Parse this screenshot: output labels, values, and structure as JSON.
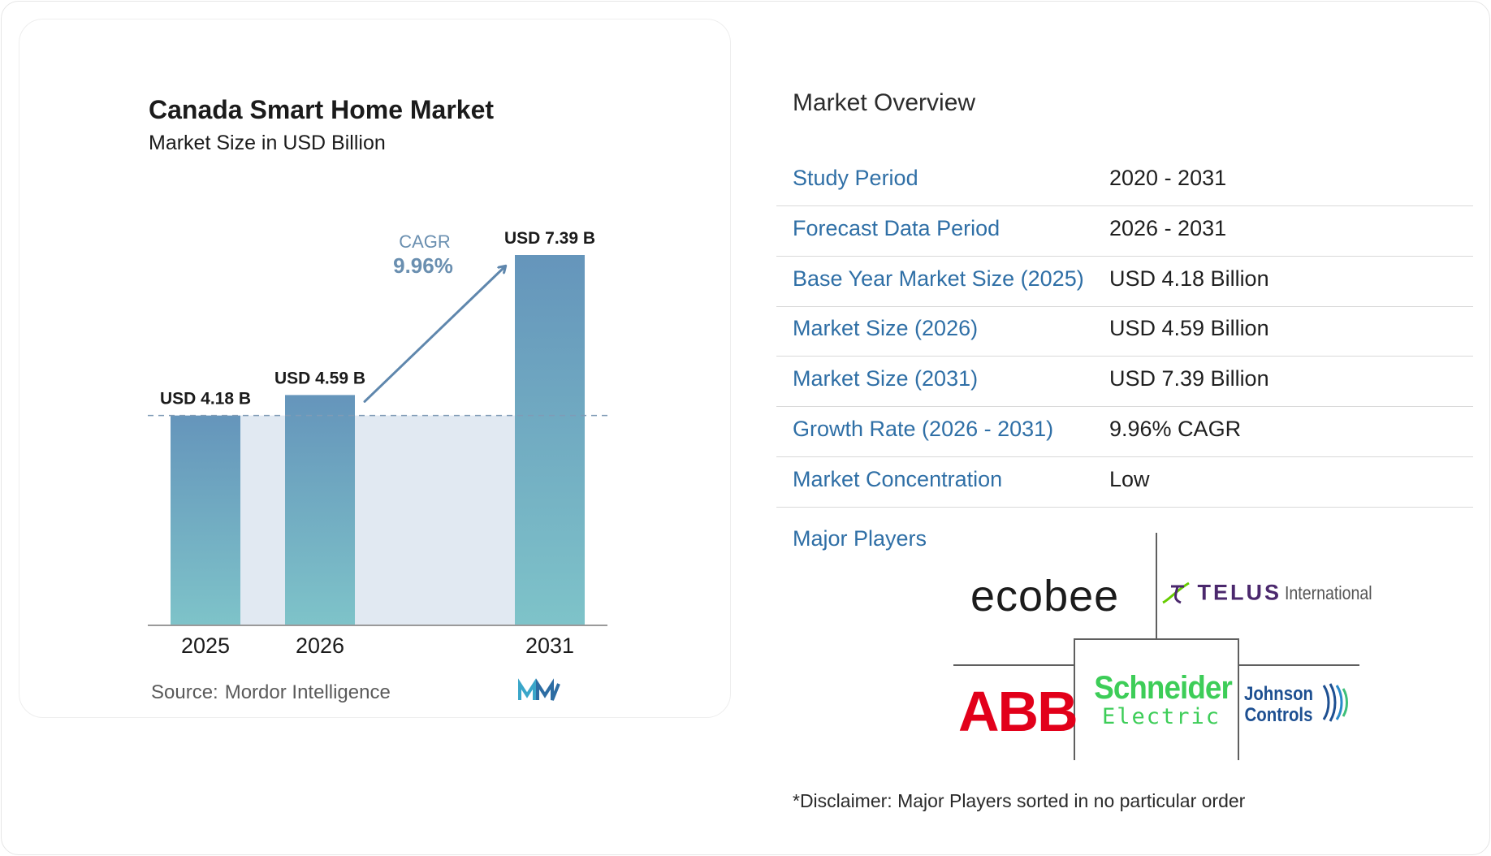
{
  "chart_data": {
    "type": "bar",
    "title": "Canada Smart Home Market",
    "subtitle": "Market Size in USD Billion",
    "categories": [
      "2025",
      "2026",
      "2031"
    ],
    "values": [
      4.18,
      4.59,
      7.39
    ],
    "data_labels": [
      "USD 4.18 B",
      "USD 4.59 B",
      "USD 7.39 B"
    ],
    "cagr_label": "CAGR",
    "cagr_value": "9.96%",
    "colors": {
      "bar_top": "#6595bb",
      "bar_bottom": "#7ec3c9",
      "band": "#e1e9f2",
      "accent": "#5f87ad",
      "cagr_text": "#6a8fb0"
    },
    "source_label": "Source:",
    "source_name": "Mordor Intelligence",
    "logo_icon": "mordor-intelligence-logo-icon"
  },
  "overview": {
    "title": "Market Overview",
    "rows": [
      {
        "label": "Study Period",
        "value": "2020 - 2031"
      },
      {
        "label": "Forecast Data Period",
        "value": "2026 - 2031"
      },
      {
        "label": "Base Year Market Size (2025)",
        "value": "USD 4.18 Billion"
      },
      {
        "label": "Market Size (2026)",
        "value": "USD 4.59 Billion"
      },
      {
        "label": "Market Size (2031)",
        "value": "USD 7.39 Billion"
      },
      {
        "label": "Growth Rate (2026 - 2031)",
        "value": "9.96% CAGR"
      },
      {
        "label": "Market Concentration",
        "value": "Low"
      }
    ],
    "label_color": "#2f6fa6"
  },
  "players": {
    "label": "Major Players",
    "logos": [
      {
        "name": "ecobee",
        "text": "ecobee"
      },
      {
        "name": "TELUS International",
        "text": "TELUS",
        "suffix": "International"
      },
      {
        "name": "ABB",
        "text": "ABB"
      },
      {
        "name": "Schneider Electric",
        "text": "Schneider",
        "suffix": "Electric"
      },
      {
        "name": "Johnson Controls",
        "line1": "Johnson",
        "line2": "Controls"
      }
    ]
  },
  "disclaimer": "*Disclaimer: Major Players sorted in no particular order"
}
